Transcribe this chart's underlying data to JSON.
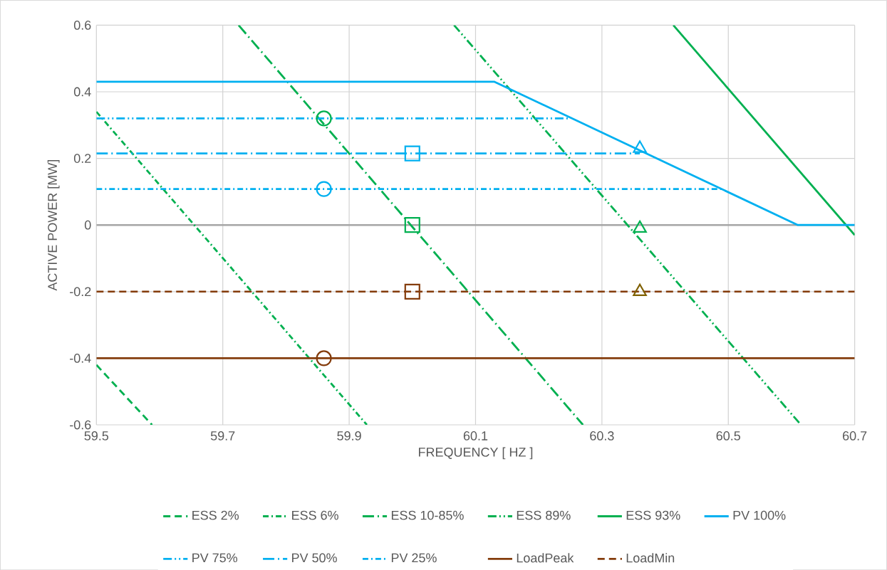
{
  "chart_data": {
    "type": "line",
    "xlabel": "FREQUENCY [ HZ ]",
    "ylabel": "ACTIVE POWER [MW]",
    "xlim": [
      59.5,
      60.7
    ],
    "ylim": [
      -0.6,
      0.6
    ],
    "xticks": [
      59.5,
      59.7,
      59.9,
      60.1,
      60.3,
      60.5,
      60.7
    ],
    "yticks": [
      -0.6,
      -0.4,
      -0.2,
      0,
      0.2,
      0.4,
      0.6
    ],
    "grid": true,
    "legend": "bottom",
    "marker": "none",
    "ref_lines": [
      {
        "axis": "y",
        "value": 0,
        "color": "#a6a6a6"
      }
    ],
    "series": [
      {
        "name": "ESS 2%",
        "color": "#00b050",
        "line_style": "dashed",
        "x": [
          59.5,
          59.588
        ],
        "values": [
          -0.42,
          -0.6
        ]
      },
      {
        "name": "ESS 6%",
        "color": "#00b050",
        "line_style": "dashdot",
        "x": [
          59.5,
          59.928
        ],
        "values": [
          0.34,
          -0.6
        ]
      },
      {
        "name": "ESS 10-85%",
        "color": "#00b050",
        "line_style": "longdashdot",
        "x": [
          59.725,
          60.27
        ],
        "values": [
          0.6,
          -0.6
        ]
      },
      {
        "name": "ESS 89%",
        "color": "#00b050",
        "line_style": "dashdotdot",
        "x": [
          60.066,
          60.615
        ],
        "values": [
          0.6,
          -0.6
        ]
      },
      {
        "name": "ESS 93%",
        "color": "#00b050",
        "line_style": "solid",
        "x": [
          60.413,
          60.7
        ],
        "values": [
          0.6,
          -0.03
        ]
      },
      {
        "name": "PV 100%",
        "color": "#00b0f0",
        "line_style": "solid",
        "x": [
          59.5,
          60.13,
          60.61,
          60.7
        ],
        "values": [
          0.43,
          0.43,
          0,
          0
        ]
      },
      {
        "name": "PV 75%",
        "color": "#00b0f0",
        "line_style": "dashdotdot",
        "x": [
          59.5,
          60.25
        ],
        "values": [
          0.32,
          0.32
        ]
      },
      {
        "name": "PV 50%",
        "color": "#00b0f0",
        "line_style": "longdashdot",
        "x": [
          59.5,
          60.36
        ],
        "values": [
          0.215,
          0.215
        ]
      },
      {
        "name": "PV 25%",
        "color": "#00b0f0",
        "line_style": "dashdot",
        "x": [
          59.5,
          60.49
        ],
        "values": [
          0.108,
          0.108
        ]
      },
      {
        "name": "LoadPeak",
        "color": "#843c0c",
        "line_style": "solid",
        "x": [
          59.5,
          60.7
        ],
        "values": [
          -0.4,
          -0.4
        ]
      },
      {
        "name": "LoadMin",
        "color": "#843c0c",
        "line_style": "dashed",
        "x": [
          59.5,
          60.7
        ],
        "values": [
          -0.2,
          -0.2
        ]
      },
      {
        "type": "scatter",
        "marker": "circle",
        "x": [
          59.86,
          59.86,
          59.86
        ],
        "values": [
          0.32,
          0.108,
          -0.4
        ],
        "colors": [
          "#00b050",
          "#00b0f0",
          "#843c0c"
        ]
      },
      {
        "type": "scatter",
        "marker": "square",
        "x": [
          60.0,
          60.0,
          60.0
        ],
        "values": [
          0.215,
          0.0,
          -0.2
        ],
        "colors": [
          "#00b0f0",
          "#00b050",
          "#843c0c"
        ]
      },
      {
        "type": "scatter",
        "marker": "triangle",
        "x": [
          60.36,
          60.36,
          60.36
        ],
        "values": [
          0.23,
          -0.01,
          -0.2
        ],
        "colors": [
          "#00b0f0",
          "#00b050",
          "#7f6000"
        ]
      }
    ]
  }
}
